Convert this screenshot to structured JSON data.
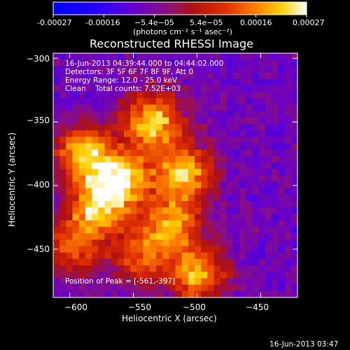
{
  "colorbar": {
    "tick_labels": [
      "-0.00027",
      "-0.00016",
      "−5.4e−05",
      "5.4e−05",
      "0.00016",
      "0.00027"
    ],
    "unit_label": "(photons cm⁻² s⁻¹ asec⁻²)"
  },
  "chart_data": {
    "type": "heatmap",
    "title": "Reconstructed RHESSI Image",
    "xlabel": "Heliocentric X (arcsec)",
    "ylabel": "Heliocentric Y (arcsec)",
    "xlim": [
      -613,
      -421
    ],
    "ylim": [
      -488,
      -296
    ],
    "x_ticks": [
      -600,
      -550,
      -500,
      -450
    ],
    "y_ticks": [
      -300,
      -350,
      -400,
      -450
    ],
    "x_tick_labels": [
      "−600",
      "−550",
      "−500",
      "−450"
    ],
    "y_tick_labels": [
      "−300",
      "−350",
      "−400",
      "−450"
    ],
    "value_range": [
      -0.00027,
      0.00027
    ],
    "peak_position": [
      -561,
      -397
    ],
    "bright_regions": [
      {
        "x": -535,
        "y": -350,
        "level": 0.95
      },
      {
        "x": -560,
        "y": -395,
        "level": 1.0
      },
      {
        "x": -590,
        "y": -375,
        "level": 0.85
      },
      {
        "x": -510,
        "y": -390,
        "level": 0.9
      },
      {
        "x": -580,
        "y": -420,
        "level": 0.8
      },
      {
        "x": -520,
        "y": -430,
        "level": 0.75
      },
      {
        "x": -500,
        "y": -470,
        "level": 0.8
      },
      {
        "x": -545,
        "y": -455,
        "level": 0.6
      },
      {
        "x": -600,
        "y": -450,
        "level": 0.55
      }
    ],
    "annotations": [
      "16-Jun-2013 04:39:44.000 to 04:44:02.000",
      "Detectors: 3F 5F 6F 7F 8F 9F, Att 0",
      "Energy Range: 12.0 - 25.0 keV",
      "Clean    Total counts: 7.52E+03",
      "Position of Peak = [-561,-397]"
    ]
  },
  "footer": {
    "timestamp": "16-Jun-2013 03:47"
  }
}
